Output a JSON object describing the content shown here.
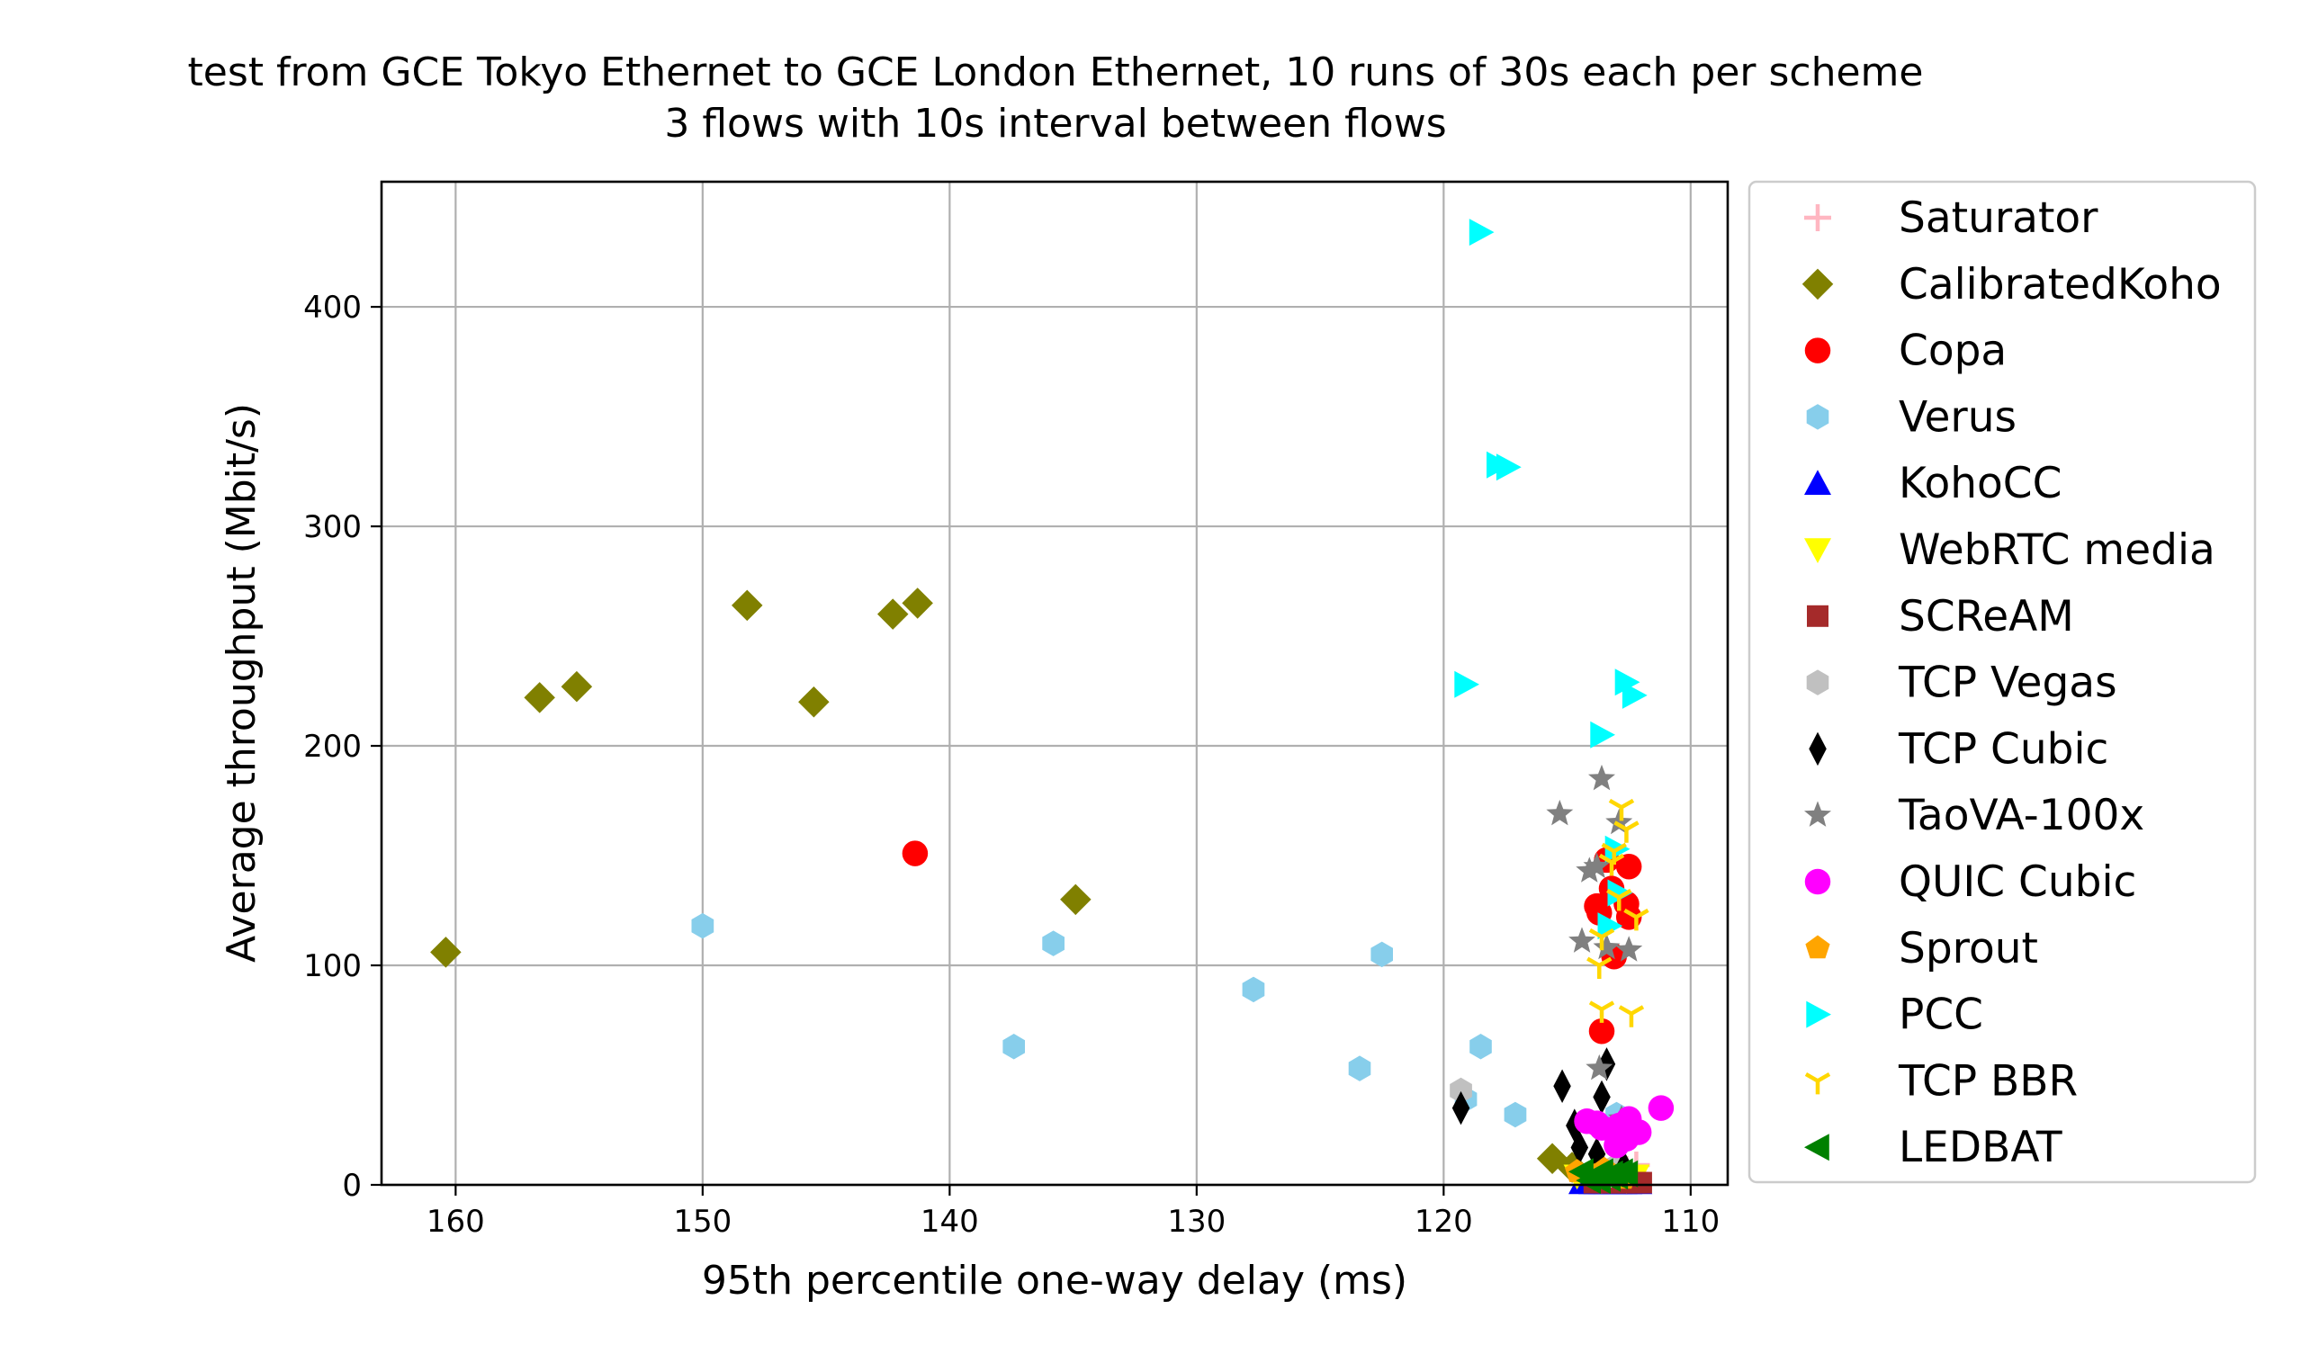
{
  "chart_data": {
    "type": "scatter",
    "title": [
      "test from GCE Tokyo Ethernet to GCE London Ethernet, 10 runs of 30s each per scheme",
      "3 flows with 10s interval between flows"
    ],
    "xlabel": "95th percentile one-way delay (ms)",
    "ylabel": "Average throughput (Mbit/s)",
    "xlim": [
      163,
      108.5
    ],
    "ylim": [
      0,
      457
    ],
    "x_inverted": true,
    "grid": true,
    "legend_position": "outside-right",
    "xticks": [
      160,
      150,
      140,
      130,
      120,
      110
    ],
    "yticks": [
      0,
      100,
      200,
      300,
      400
    ],
    "series": [
      {
        "name": "Saturator",
        "marker": "plus",
        "color": "#ffb6c1",
        "points": [
          [
            112.2,
            9
          ],
          [
            112.6,
            7
          ],
          [
            113.0,
            4
          ],
          [
            112.4,
            3
          ]
        ]
      },
      {
        "name": "CalibratedKoho",
        "marker": "diamond",
        "color": "#808000",
        "points": [
          [
            160.4,
            106
          ],
          [
            156.6,
            222
          ],
          [
            155.1,
            227
          ],
          [
            148.2,
            264
          ],
          [
            145.5,
            220
          ],
          [
            142.3,
            260
          ],
          [
            141.3,
            265
          ],
          [
            134.9,
            130
          ],
          [
            115.6,
            12
          ],
          [
            114.8,
            8
          ]
        ]
      },
      {
        "name": "Copa",
        "marker": "circle",
        "color": "#ff0000",
        "points": [
          [
            141.4,
            151
          ],
          [
            113.4,
            148
          ],
          [
            112.5,
            145
          ],
          [
            113.8,
            127
          ],
          [
            112.6,
            128
          ],
          [
            113.7,
            124
          ],
          [
            113.1,
            104
          ],
          [
            113.6,
            70
          ],
          [
            112.5,
            122
          ],
          [
            113.2,
            135
          ]
        ]
      },
      {
        "name": "Verus",
        "marker": "hexagon",
        "color": "#87ceeb",
        "points": [
          [
            150.0,
            118
          ],
          [
            137.4,
            63
          ],
          [
            135.8,
            110
          ],
          [
            127.7,
            89
          ],
          [
            123.4,
            53
          ],
          [
            122.5,
            105
          ],
          [
            118.5,
            63
          ],
          [
            119.1,
            39
          ],
          [
            117.1,
            32
          ],
          [
            113.0,
            32
          ]
        ]
      },
      {
        "name": "KohoCC",
        "marker": "triangle-up",
        "color": "#0000ff",
        "points": [
          [
            114.4,
            1
          ],
          [
            113.8,
            1
          ],
          [
            113.1,
            1
          ],
          [
            112.7,
            1
          ],
          [
            112.1,
            1
          ],
          [
            113.4,
            1
          ],
          [
            114.0,
            1
          ],
          [
            112.5,
            1
          ],
          [
            113.6,
            1
          ],
          [
            112.9,
            1
          ]
        ]
      },
      {
        "name": "WebRTC media",
        "marker": "triangle-down",
        "color": "#ffff00",
        "points": [
          [
            114.6,
            4
          ],
          [
            113.9,
            3
          ],
          [
            113.3,
            5
          ],
          [
            112.8,
            3
          ],
          [
            112.2,
            4
          ],
          [
            113.6,
            2
          ],
          [
            114.1,
            3
          ],
          [
            112.6,
            2
          ],
          [
            113.0,
            4
          ],
          [
            113.4,
            3
          ]
        ]
      },
      {
        "name": "SCReAM",
        "marker": "square",
        "color": "#a52a2a",
        "points": [
          [
            113.6,
            1
          ],
          [
            113.1,
            1
          ],
          [
            112.7,
            1
          ],
          [
            112.2,
            1
          ],
          [
            113.9,
            1
          ],
          [
            112.9,
            1
          ],
          [
            113.4,
            1
          ],
          [
            112.5,
            1
          ],
          [
            113.2,
            1
          ],
          [
            112.0,
            1
          ]
        ]
      },
      {
        "name": "TCP Vegas",
        "marker": "hexagon",
        "color": "#c0c0c0",
        "points": [
          [
            119.3,
            43
          ],
          [
            113.1,
            8
          ],
          [
            113.6,
            5
          ],
          [
            112.9,
            6
          ],
          [
            113.3,
            4
          ]
        ]
      },
      {
        "name": "TCP Cubic",
        "marker": "thin-diamond",
        "color": "#000000",
        "points": [
          [
            119.3,
            35
          ],
          [
            115.2,
            45
          ],
          [
            114.7,
            27
          ],
          [
            114.5,
            17
          ],
          [
            113.8,
            14
          ],
          [
            113.6,
            40
          ],
          [
            113.4,
            55
          ],
          [
            112.7,
            8
          ],
          [
            113.1,
            22
          ],
          [
            113.9,
            5
          ]
        ]
      },
      {
        "name": "TaoVA-100x",
        "marker": "star",
        "color": "#808080",
        "points": [
          [
            115.3,
            169
          ],
          [
            113.6,
            185
          ],
          [
            112.9,
            165
          ],
          [
            114.1,
            143
          ],
          [
            113.8,
            145
          ],
          [
            114.4,
            111
          ],
          [
            113.4,
            108
          ],
          [
            112.5,
            107
          ],
          [
            113.7,
            53
          ],
          [
            112.8,
            30
          ]
        ]
      },
      {
        "name": "QUIC Cubic",
        "marker": "circle",
        "color": "#ff00ff",
        "points": [
          [
            114.2,
            29
          ],
          [
            113.8,
            28
          ],
          [
            113.6,
            26
          ],
          [
            112.8,
            23
          ],
          [
            112.5,
            30
          ],
          [
            112.1,
            24
          ],
          [
            111.2,
            35
          ],
          [
            112.6,
            21
          ],
          [
            113.0,
            18
          ],
          [
            112.9,
            27
          ]
        ]
      },
      {
        "name": "Sprout",
        "marker": "pentagon",
        "color": "#ffa500",
        "points": [
          [
            114.6,
            6
          ],
          [
            113.9,
            4
          ],
          [
            113.2,
            5
          ],
          [
            112.7,
            3
          ],
          [
            113.5,
            7
          ]
        ]
      },
      {
        "name": "PCC",
        "marker": "triangle-right",
        "color": "#00ffff",
        "points": [
          [
            118.5,
            434
          ],
          [
            117.8,
            328
          ],
          [
            117.4,
            327
          ],
          [
            119.1,
            228
          ],
          [
            112.6,
            229
          ],
          [
            112.3,
            223
          ],
          [
            113.6,
            205
          ],
          [
            113.0,
            153
          ],
          [
            112.9,
            133
          ],
          [
            113.3,
            118
          ]
        ]
      },
      {
        "name": "TCP BBR",
        "marker": "tri-down",
        "color": "#ffd700",
        "points": [
          [
            112.8,
            172
          ],
          [
            112.6,
            162
          ],
          [
            113.6,
            113
          ],
          [
            113.7,
            100
          ],
          [
            113.6,
            80
          ],
          [
            112.4,
            78
          ],
          [
            112.2,
            122
          ],
          [
            112.9,
            131
          ],
          [
            113.2,
            147
          ],
          [
            113.1,
            152
          ]
        ]
      },
      {
        "name": "LEDBAT",
        "marker": "triangle-left",
        "color": "#008000",
        "points": [
          [
            114.4,
            6
          ],
          [
            113.9,
            4
          ],
          [
            113.6,
            6
          ],
          [
            113.0,
            4
          ],
          [
            112.6,
            5
          ],
          [
            113.3,
            3
          ],
          [
            114.1,
            2
          ],
          [
            112.8,
            6
          ],
          [
            113.7,
            2
          ],
          [
            113.2,
            5
          ]
        ]
      }
    ]
  }
}
